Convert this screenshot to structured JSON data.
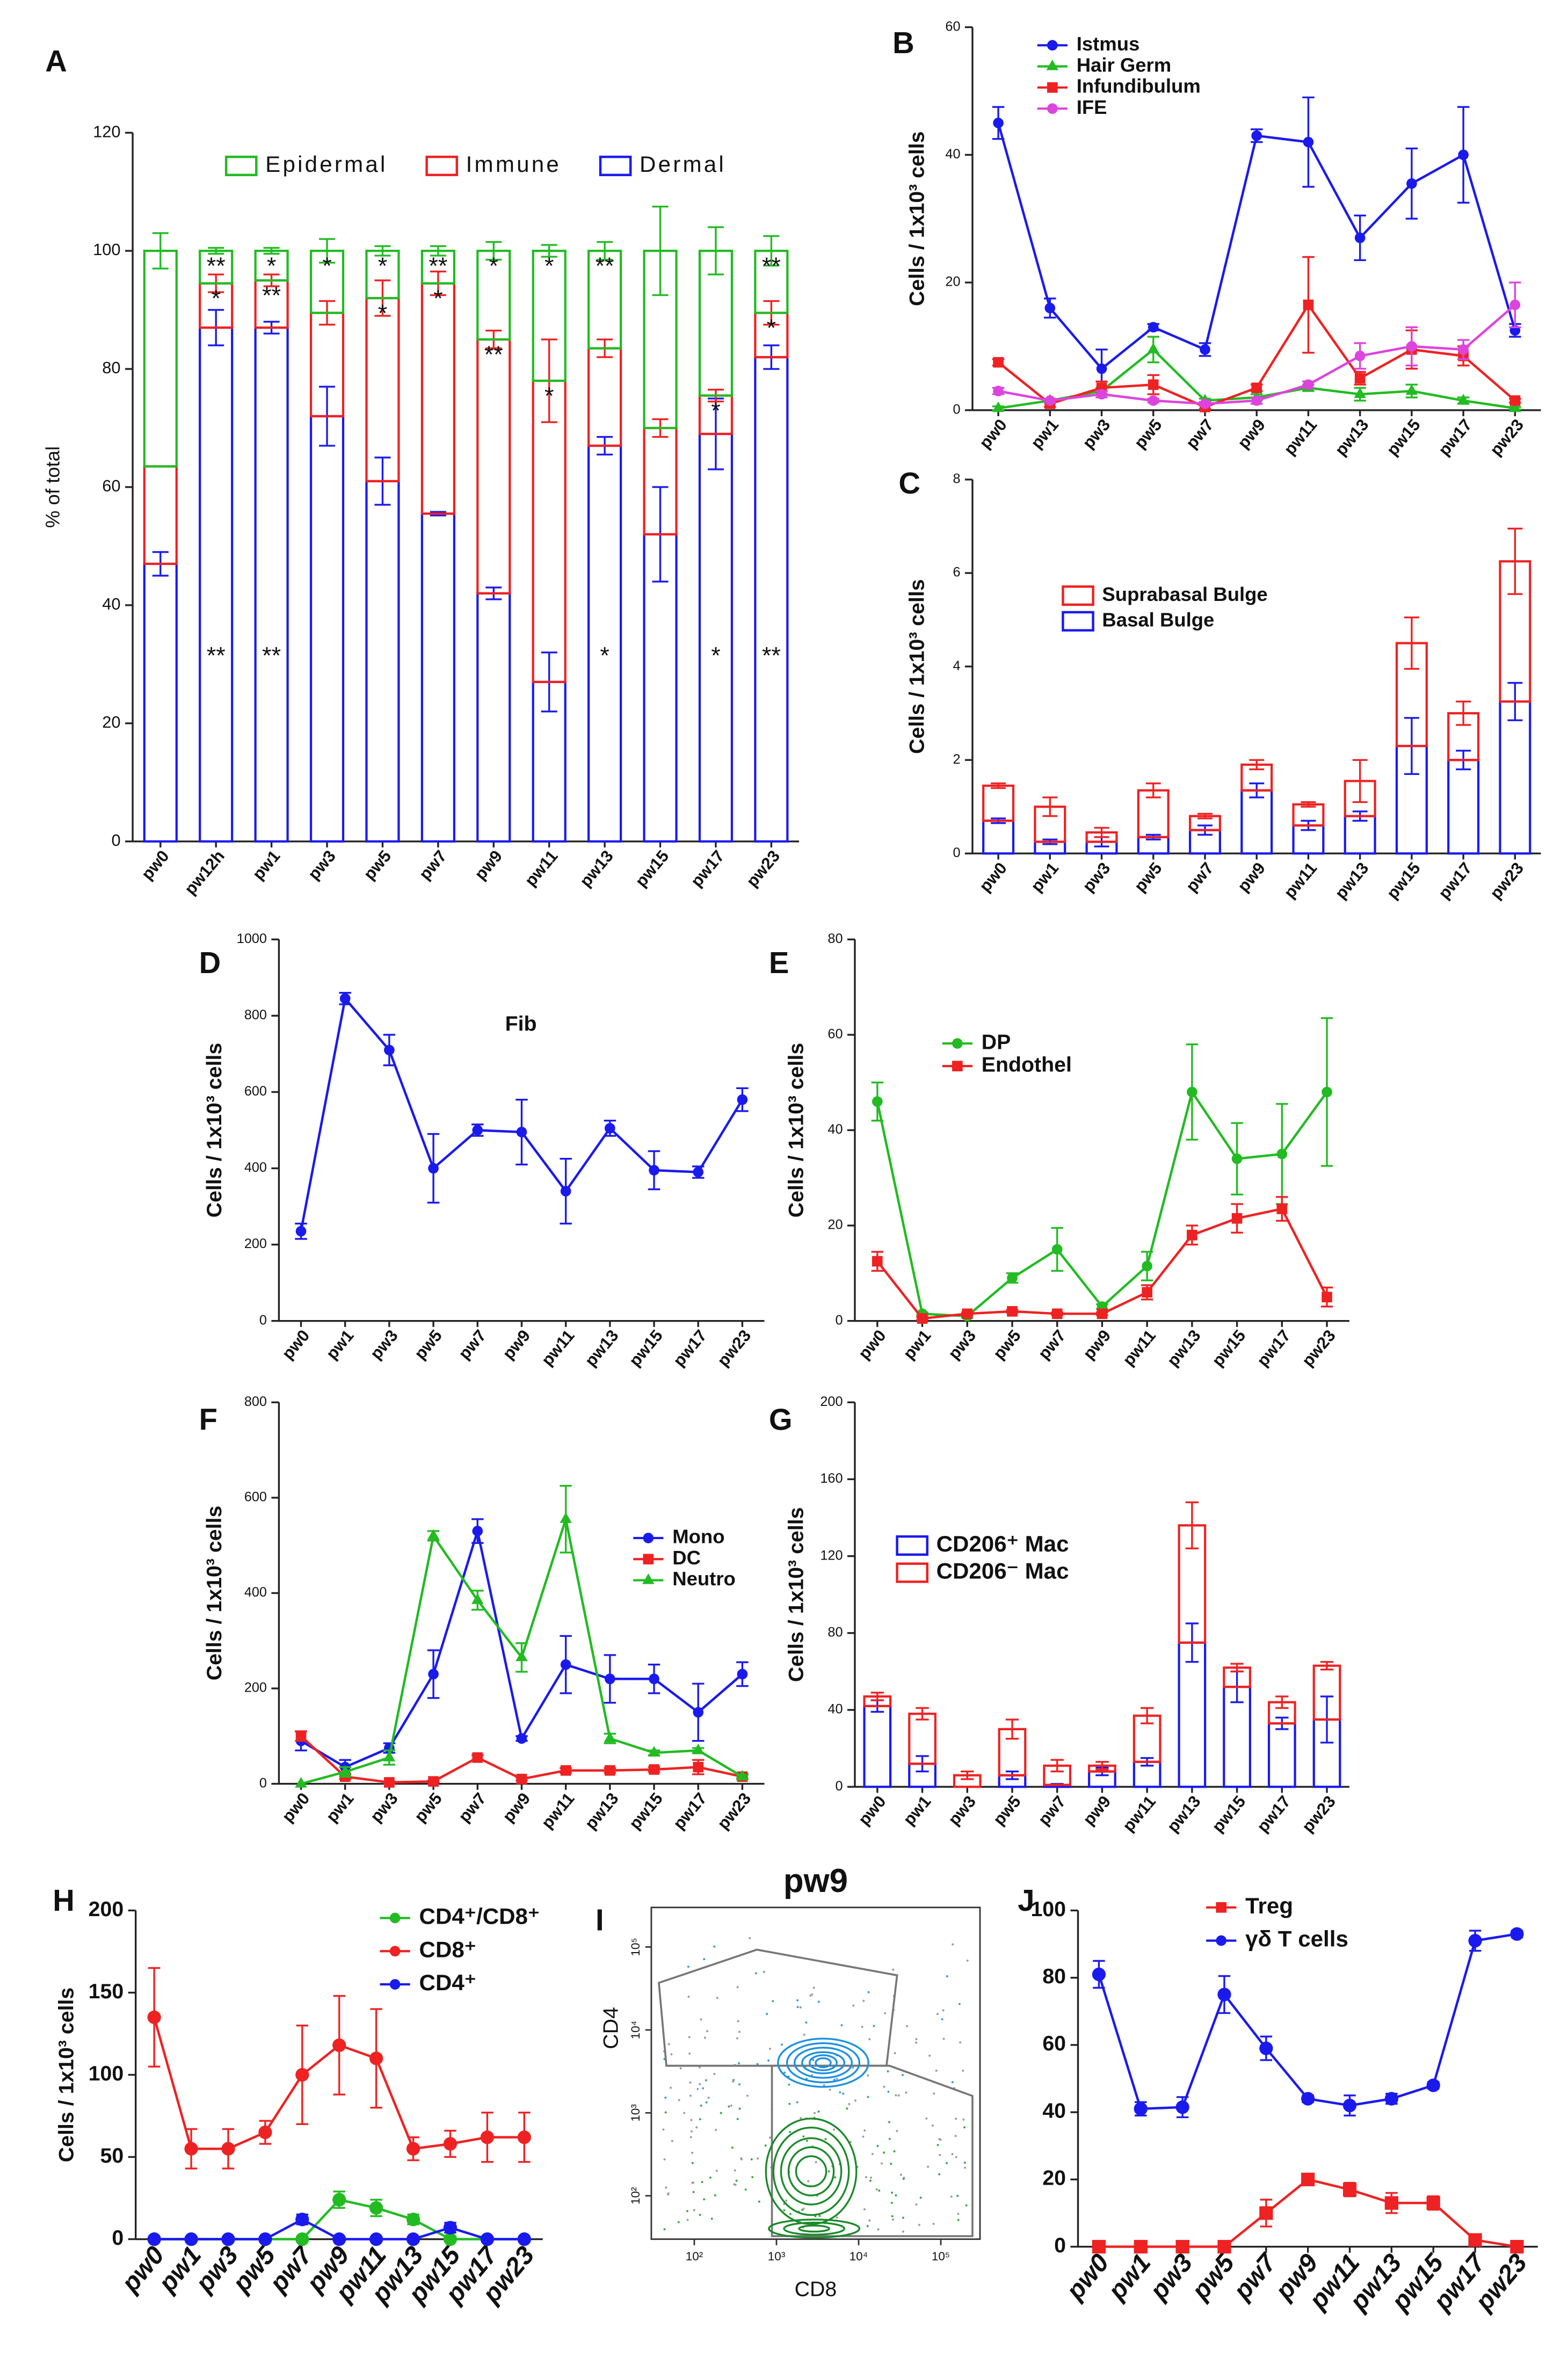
{
  "chart_data": [
    {
      "panel": "A",
      "type": "stacked_bar",
      "ylabel": "% of total",
      "categories": [
        "pw0",
        "pw12h",
        "pw1",
        "pw3",
        "pw5",
        "pw7",
        "pw9",
        "pw11",
        "pw13",
        "pw15",
        "pw17",
        "pw23"
      ],
      "ylim": [
        0,
        120
      ],
      "yticks": [
        0,
        20,
        40,
        60,
        80,
        100,
        120
      ],
      "series": [
        {
          "name": "Dermal",
          "color": "#1a1aee",
          "values": [
            47,
            87,
            87,
            72,
            61,
            55.5,
            42,
            27,
            67,
            52,
            69,
            82
          ],
          "errors": [
            2,
            3,
            1,
            5,
            4,
            0.3,
            1,
            5,
            1.5,
            8,
            6,
            2
          ],
          "stars": [
            null,
            "**",
            "**",
            null,
            null,
            null,
            null,
            null,
            "*",
            null,
            "*",
            "**"
          ]
        },
        {
          "name": "Immune",
          "color": "#ee2222",
          "values": [
            16.5,
            7.5,
            8,
            17.5,
            31,
            39,
            43,
            51,
            16.5,
            18,
            6.5,
            7.5
          ],
          "errors": [
            0,
            1.5,
            1,
            2,
            3,
            2,
            1.5,
            7,
            1.5,
            1.5,
            1,
            2
          ],
          "stars": [
            null,
            "*",
            "**",
            null,
            "*",
            "*",
            "**",
            "*",
            null,
            null,
            "*",
            "*"
          ]
        },
        {
          "name": "Epidermal",
          "color": "#22bb22",
          "values": [
            36.5,
            5.5,
            5,
            10.5,
            8,
            5.5,
            15,
            22,
            16.5,
            30,
            24.5,
            10.5
          ],
          "errors": [
            3,
            0.5,
            0.5,
            2,
            0.8,
            0.8,
            1.5,
            1,
            1.5,
            7.5,
            4,
            2.5
          ],
          "stars": [
            null,
            "**",
            "*",
            "*",
            "*",
            "**",
            "*",
            "*",
            "**",
            null,
            null,
            "**"
          ]
        }
      ]
    },
    {
      "panel": "B",
      "type": "line",
      "ylabel": "Cells / 1x10³ cells",
      "categories": [
        "pw0",
        "pw1",
        "pw3",
        "pw5",
        "pw7",
        "pw9",
        "pw11",
        "pw13",
        "pw15",
        "pw17",
        "pw23"
      ],
      "ylim": [
        0,
        60
      ],
      "yticks": [
        0,
        20,
        40,
        60
      ],
      "series": [
        {
          "name": "Istmus",
          "color": "#1a1aee",
          "marker": "circle",
          "values": [
            45,
            16,
            6.5,
            13,
            9.5,
            43,
            42,
            27,
            35.5,
            40,
            12.5
          ],
          "errors": [
            2.5,
            1.5,
            3,
            0.5,
            1,
            1,
            7,
            3.5,
            5.5,
            7.5,
            1
          ]
        },
        {
          "name": "Hair Germ",
          "color": "#22bb22",
          "marker": "triangle",
          "values": [
            0.3,
            1.5,
            3,
            9.5,
            1.5,
            2,
            3.5,
            2.5,
            3,
            1.5,
            0.3
          ],
          "errors": [
            0.3,
            0.3,
            0.5,
            2,
            0.3,
            0.5,
            0.5,
            1,
            1,
            0.5,
            0.2
          ]
        },
        {
          "name": "Infundibulum",
          "color": "#ee2222",
          "marker": "square",
          "values": [
            7.5,
            1,
            3.5,
            4,
            0.5,
            3.5,
            16.5,
            5,
            9.5,
            8.5,
            1.5
          ],
          "errors": [
            0.5,
            0.5,
            1,
            1.5,
            0.3,
            0.5,
            7.5,
            1,
            3,
            1.5,
            0.3
          ]
        },
        {
          "name": "IFE",
          "color": "#dd44dd",
          "marker": "circle",
          "values": [
            3,
            1.5,
            2.5,
            1.5,
            1,
            1.5,
            4,
            8.5,
            10,
            9.5,
            16.5
          ],
          "errors": [
            0.5,
            0.3,
            0.5,
            0.3,
            0.3,
            0.5,
            0.5,
            2,
            3,
            1.5,
            3.5
          ]
        }
      ]
    },
    {
      "panel": "C",
      "type": "stacked_bar",
      "ylabel": "Cells / 1x10³ cells",
      "categories": [
        "pw0",
        "pw1",
        "pw3",
        "pw5",
        "pw7",
        "pw9",
        "pw11",
        "pw13",
        "pw15",
        "pw17",
        "pw23"
      ],
      "ylim": [
        0,
        8
      ],
      "yticks": [
        0,
        2,
        4,
        6,
        8
      ],
      "series": [
        {
          "name": "Basal Bulge",
          "color": "#1a1aee",
          "values": [
            0.7,
            0.25,
            0.25,
            0.35,
            0.5,
            1.35,
            0.6,
            0.8,
            2.3,
            2.0,
            3.25
          ],
          "errors": [
            0.05,
            0.05,
            0.1,
            0.05,
            0.1,
            0.15,
            0.1,
            0.1,
            0.6,
            0.2,
            0.4
          ]
        },
        {
          "name": "Suprabasal Bulge",
          "color": "#ee2222",
          "values": [
            0.75,
            0.75,
            0.2,
            1.0,
            0.3,
            0.55,
            0.45,
            0.75,
            2.2,
            1.0,
            3.0
          ],
          "errors": [
            0.05,
            0.2,
            0.1,
            0.15,
            0.05,
            0.1,
            0.05,
            0.45,
            0.55,
            0.25,
            0.7
          ]
        }
      ]
    },
    {
      "panel": "D",
      "type": "line",
      "ylabel": "Cells / 1x10³ cells",
      "categories": [
        "pw0",
        "pw1",
        "pw3",
        "pw5",
        "pw7",
        "pw9",
        "pw11",
        "pw13",
        "pw15",
        "pw17",
        "pw23"
      ],
      "ylim": [
        0,
        1000
      ],
      "yticks": [
        0,
        200,
        400,
        600,
        800,
        1000
      ],
      "series": [
        {
          "name": "Fib",
          "color": "#1a1aee",
          "marker": "circle",
          "values": [
            235,
            845,
            710,
            400,
            500,
            495,
            340,
            505,
            395,
            390,
            580
          ],
          "errors": [
            20,
            15,
            40,
            90,
            15,
            85,
            85,
            20,
            50,
            15,
            30
          ]
        }
      ]
    },
    {
      "panel": "E",
      "type": "line",
      "ylabel": "Cells / 1x10³ cells",
      "categories": [
        "pw0",
        "pw1",
        "pw3",
        "pw5",
        "pw7",
        "pw9",
        "pw11",
        "pw13",
        "pw15",
        "pw17",
        "pw23"
      ],
      "ylim": [
        0,
        80
      ],
      "yticks": [
        0,
        20,
        40,
        60,
        80
      ],
      "series": [
        {
          "name": "DP",
          "color": "#22bb22",
          "marker": "circle",
          "values": [
            46,
            1.5,
            1,
            9,
            15,
            3,
            11.5,
            48,
            34,
            35,
            48
          ],
          "errors": [
            4,
            0.3,
            0.3,
            1,
            4.5,
            0.5,
            3,
            10,
            7.5,
            10.5,
            15.5
          ]
        },
        {
          "name": "Endothel",
          "color": "#ee2222",
          "marker": "square",
          "values": [
            12.5,
            0.5,
            1.5,
            2,
            1.5,
            1.5,
            6,
            18,
            21.5,
            23.5,
            5
          ],
          "errors": [
            2,
            0.3,
            0.3,
            0.3,
            0.3,
            0.3,
            1.5,
            2,
            3,
            2.5,
            2
          ]
        }
      ]
    },
    {
      "panel": "F",
      "type": "line",
      "ylabel": "Cells / 1x10³ cells",
      "categories": [
        "pw0",
        "pw1",
        "pw3",
        "pw5",
        "pw7",
        "pw9",
        "pw11",
        "pw13",
        "pw15",
        "pw17",
        "pw23"
      ],
      "ylim": [
        0,
        800
      ],
      "yticks": [
        0,
        200,
        400,
        600,
        800
      ],
      "series": [
        {
          "name": "Mono",
          "color": "#1a1aee",
          "marker": "circle",
          "values": [
            90,
            35,
            75,
            230,
            530,
            95,
            250,
            220,
            220,
            150,
            230
          ],
          "errors": [
            20,
            15,
            10,
            50,
            25,
            5,
            60,
            50,
            30,
            60,
            25
          ]
        },
        {
          "name": "DC",
          "color": "#ee2222",
          "marker": "square",
          "values": [
            100,
            15,
            3,
            5,
            55,
            10,
            28,
            28,
            30,
            35,
            15
          ],
          "errors": [
            10,
            5,
            2,
            2,
            5,
            3,
            5,
            5,
            5,
            15,
            5
          ]
        },
        {
          "name": "Neutro",
          "color": "#22bb22",
          "marker": "triangle",
          "values": [
            0,
            25,
            55,
            520,
            385,
            265,
            555,
            95,
            65,
            70,
            15
          ],
          "errors": [
            0,
            10,
            15,
            10,
            20,
            30,
            70,
            10,
            5,
            5,
            3
          ]
        }
      ]
    },
    {
      "panel": "G",
      "type": "stacked_bar",
      "ylabel": "Cells / 1x10³ cells",
      "categories": [
        "pw0",
        "pw1",
        "pw3",
        "pw5",
        "pw7",
        "pw9",
        "pw11",
        "pw13",
        "pw15",
        "pw17",
        "pw23"
      ],
      "ylim": [
        0,
        200
      ],
      "yticks": [
        0,
        40,
        80,
        120,
        160,
        200
      ],
      "series": [
        {
          "name": "CD206⁺ Mac",
          "color": "#1a1aee",
          "values": [
            42,
            12,
            0,
            6,
            1,
            8,
            13,
            75,
            52,
            33,
            35
          ],
          "errors": [
            3,
            4,
            0,
            2,
            0.5,
            2,
            2,
            10,
            8,
            3,
            12
          ]
        },
        {
          "name": "CD206⁻ Mac",
          "color": "#ee2222",
          "values": [
            5,
            26,
            6,
            24,
            10,
            3,
            24,
            61,
            10,
            11,
            28
          ],
          "errors": [
            2,
            3,
            2,
            5,
            3,
            2,
            4,
            12,
            2,
            3,
            2
          ]
        }
      ]
    },
    {
      "panel": "H",
      "type": "line",
      "ylabel": "Cells / 1x10³ cells",
      "categories": [
        "pw0",
        "pw1",
        "pw3",
        "pw5",
        "pw7",
        "pw9",
        "pw11",
        "pw13",
        "pw15",
        "pw17",
        "pw23"
      ],
      "ylim": [
        0,
        200
      ],
      "yticks": [
        0,
        50,
        100,
        150,
        200
      ],
      "series": [
        {
          "name": "CD4⁺/CD8⁺",
          "color": "#22bb22",
          "marker": "circle",
          "values": [
            0,
            0,
            0,
            0,
            0,
            24,
            19,
            12,
            0,
            0,
            0
          ],
          "errors": [
            0,
            0,
            0,
            0,
            0,
            5,
            5,
            3,
            0,
            0,
            0
          ]
        },
        {
          "name": "CD8⁺",
          "color": "#ee2222",
          "marker": "circle",
          "values": [
            135,
            55,
            55,
            65,
            100,
            118,
            110,
            55,
            58,
            62,
            62
          ],
          "errors": [
            30,
            12,
            12,
            7,
            30,
            30,
            30,
            7,
            8,
            15,
            15
          ]
        },
        {
          "name": "CD4⁺",
          "color": "#1a1aee",
          "marker": "circle",
          "values": [
            0,
            0,
            0,
            0,
            12,
            0,
            0,
            0,
            7,
            0,
            0
          ],
          "errors": [
            0,
            0,
            0,
            0,
            3,
            0,
            0,
            0,
            3,
            0,
            0
          ]
        }
      ]
    },
    {
      "panel": "I",
      "type": "flow",
      "title": "pw9",
      "xlabel": "CD8",
      "ylabel": "CD4",
      "xlim": [
        30,
        300000
      ],
      "ylim": [
        30,
        300000
      ],
      "xticks": [
        {
          "value": 100,
          "label": "10²"
        },
        {
          "value": 1000,
          "label": "10³"
        },
        {
          "value": 10000,
          "label": "10⁴"
        },
        {
          "value": 100000,
          "label": "10⁵"
        }
      ],
      "yticks": [
        {
          "value": 100,
          "label": "10²"
        },
        {
          "value": 1000,
          "label": "10³"
        },
        {
          "value": 10000,
          "label": "10⁴"
        },
        {
          "value": 100000,
          "label": "10⁵"
        }
      ]
    },
    {
      "panel": "J",
      "type": "line",
      "categories": [
        "pw0",
        "pw1",
        "pw3",
        "pw5",
        "pw7",
        "pw9",
        "pw11",
        "pw13",
        "pw15",
        "pw17",
        "pw23"
      ],
      "ylim": [
        0,
        100
      ],
      "yticks": [
        0,
        20,
        40,
        60,
        80,
        100
      ],
      "series": [
        {
          "name": "Treg",
          "color": "#ee2222",
          "marker": "square",
          "values": [
            0,
            0,
            0,
            0,
            10,
            20,
            17,
            13,
            13,
            2,
            0
          ],
          "errors": [
            0,
            0,
            0,
            0,
            4,
            1.5,
            2,
            3,
            2,
            1,
            0
          ]
        },
        {
          "name": "γδ T cells",
          "color": "#1a1aee",
          "marker": "circle",
          "values": [
            81,
            41,
            41.5,
            75,
            59,
            44,
            42,
            44,
            48,
            91,
            93
          ],
          "errors": [
            4,
            2,
            3,
            5.5,
            3.5,
            1,
            3,
            1.5,
            1,
            3,
            1
          ]
        }
      ]
    }
  ]
}
